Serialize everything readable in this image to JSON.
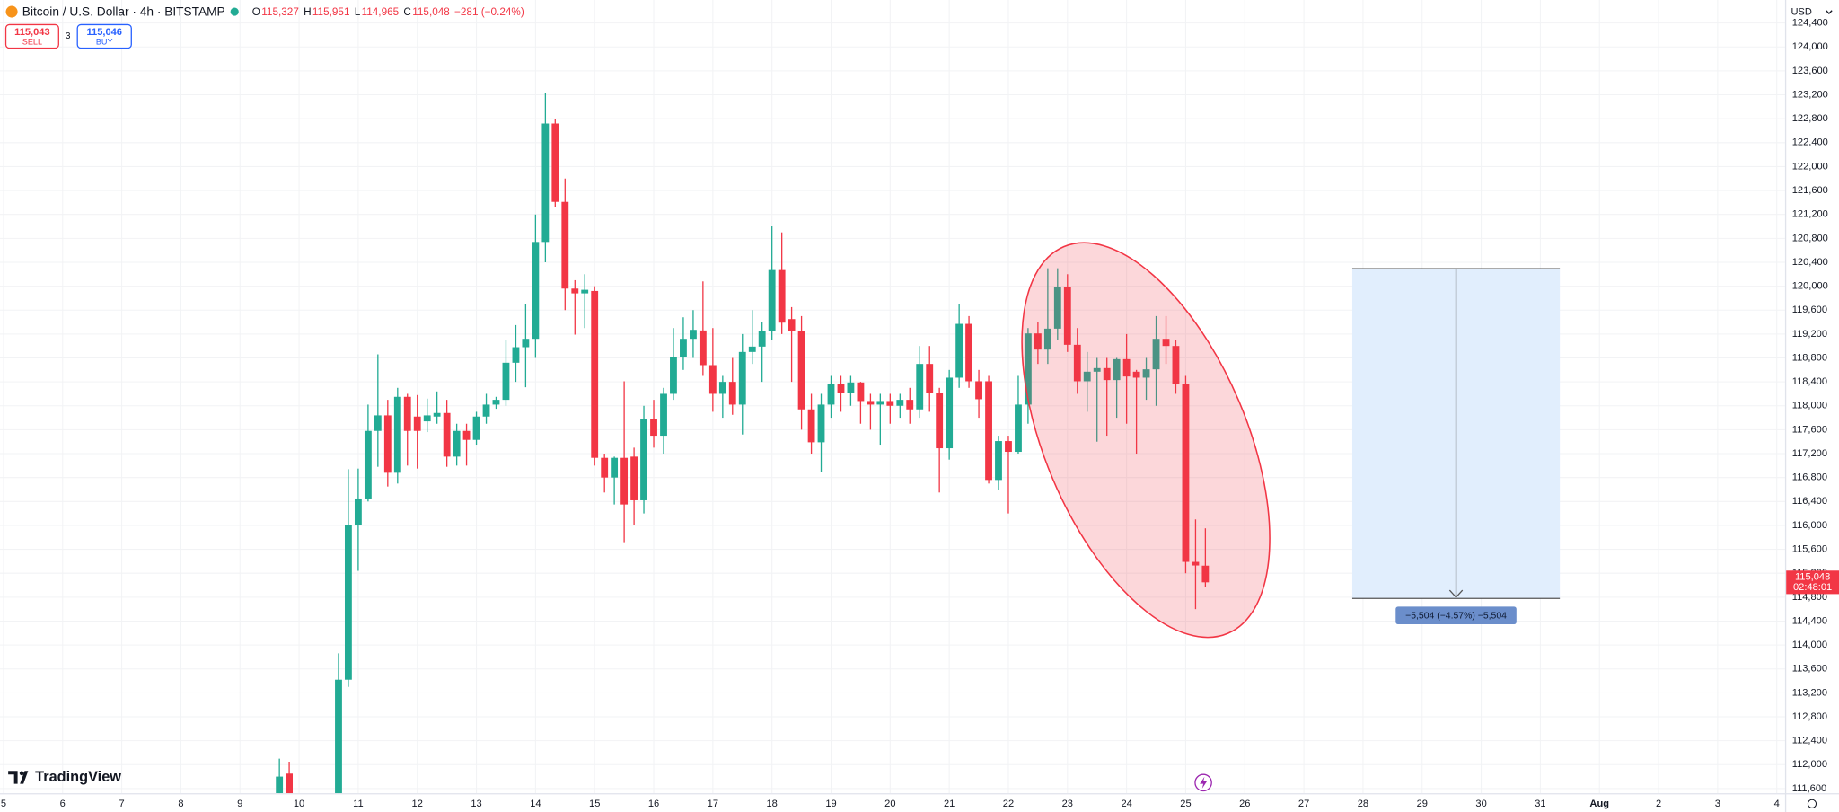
{
  "header": {
    "symbol": "Bitcoin / U.S. Dollar · 4h · BITSTAMP",
    "ohlc": [
      {
        "key": "O",
        "value": "115,327"
      },
      {
        "key": "H",
        "value": "115,951"
      },
      {
        "key": "L",
        "value": "114,965"
      },
      {
        "key": "C",
        "value": "115,048"
      }
    ],
    "change": "−281 (−0.24%)",
    "sell": {
      "price": "115,043",
      "label": "SELL"
    },
    "spread": "3",
    "buy": {
      "price": "115,046",
      "label": "BUY"
    },
    "currency": "USD",
    "price_tag": {
      "price": "115,048",
      "countdown": "02:48:01"
    },
    "measure_label": "−5,504 (−4.57%) −5,504",
    "logo": "TradingView"
  },
  "chart_data": {
    "type": "candlestick",
    "up_color": "#22ab94",
    "down_color": "#f23645",
    "grid": true,
    "x": [
      9.667,
      9.833,
      10.667,
      10.833,
      11,
      11.167,
      11.333,
      11.5,
      11.667,
      11.833,
      12,
      12.167,
      12.333,
      12.5,
      12.667,
      12.833,
      13,
      13.167,
      13.333,
      13.5,
      13.667,
      13.833,
      14,
      14.167,
      14.333,
      14.5,
      14.667,
      14.833,
      15,
      15.167,
      15.333,
      15.5,
      15.667,
      15.833,
      16,
      16.167,
      16.333,
      16.5,
      16.667,
      16.833,
      17,
      17.167,
      17.333,
      17.5,
      17.667,
      17.833,
      18,
      18.167,
      18.333,
      18.5,
      18.667,
      18.833,
      19,
      19.167,
      19.333,
      19.5,
      19.667,
      19.833,
      20,
      20.167,
      20.333,
      20.5,
      20.667,
      20.833,
      21,
      21.167,
      21.333,
      21.5,
      21.667,
      21.833,
      22,
      22.167,
      22.333,
      22.5,
      22.667,
      22.833,
      23,
      23.167,
      23.333,
      23.5,
      23.667,
      23.833,
      24,
      24.167,
      24.333,
      24.5,
      24.667,
      24.833,
      25,
      25.167,
      25.333
    ],
    "open": [
      111520,
      111850,
      111500,
      113420,
      116010,
      116450,
      117580,
      117840,
      116880,
      118150,
      117820,
      117740,
      117820,
      117880,
      117150,
      117580,
      117430,
      117820,
      118020,
      118100,
      118720,
      118980,
      119120,
      120740,
      122720,
      121410,
      119960,
      119880,
      119920,
      117130,
      116800,
      117130,
      117150,
      116420,
      117780,
      117500,
      118200,
      118820,
      119120,
      119260,
      118680,
      118200,
      118400,
      118020,
      118900,
      118990,
      119250,
      120270,
      119450,
      119250,
      117940,
      117390,
      118020,
      118370,
      118220,
      118390,
      118080,
      118020,
      118080,
      118000,
      118100,
      117940,
      118700,
      118210,
      117290,
      118470,
      119370,
      118410,
      118410,
      116760,
      117410,
      117230,
      118020,
      119210,
      118940,
      119290,
      119990,
      119020,
      118410,
      118570,
      118630,
      118430,
      118780,
      118570,
      118470,
      118610,
      119120,
      119000,
      118370,
      115390,
      115327
    ],
    "high": [
      112100,
      112050,
      113860,
      116940,
      116950,
      118020,
      118860,
      118100,
      118300,
      118200,
      118180,
      118120,
      118240,
      118100,
      117700,
      117700,
      117900,
      118200,
      118150,
      119100,
      119350,
      119700,
      121200,
      123230,
      122800,
      121800,
      120100,
      120200,
      120000,
      117200,
      117150,
      118410,
      117300,
      118000,
      118100,
      118300,
      119300,
      119480,
      119600,
      120080,
      119300,
      118500,
      118800,
      119200,
      119600,
      119400,
      121000,
      120900,
      119650,
      119500,
      118200,
      118200,
      118500,
      118500,
      118500,
      118400,
      118200,
      118200,
      118200,
      118200,
      118300,
      119000,
      119000,
      118300,
      118600,
      119700,
      119500,
      118600,
      118500,
      117500,
      117500,
      118500,
      119300,
      119400,
      120300,
      120300,
      120200,
      119300,
      118900,
      118800,
      118800,
      118800,
      119200,
      118600,
      118800,
      119500,
      119500,
      119100,
      118500,
      116100,
      115951
    ],
    "low": [
      111400,
      111400,
      111400,
      113300,
      115240,
      116400,
      116980,
      116650,
      116700,
      117000,
      116950,
      117560,
      117700,
      116980,
      117000,
      117000,
      117350,
      117700,
      117950,
      118000,
      118400,
      118310,
      118800,
      120400,
      121320,
      119600,
      119190,
      119300,
      117000,
      116550,
      116350,
      115720,
      116000,
      116200,
      117300,
      117200,
      118100,
      118600,
      118800,
      118500,
      117900,
      117800,
      117850,
      117520,
      118700,
      118400,
      119100,
      119200,
      118400,
      117600,
      117200,
      116900,
      117800,
      117900,
      118000,
      117700,
      117600,
      117350,
      117700,
      117800,
      117700,
      117800,
      117900,
      116550,
      117100,
      118300,
      118300,
      117800,
      116700,
      116600,
      116200,
      117200,
      117700,
      118700,
      118700,
      119100,
      118900,
      118200,
      117900,
      117400,
      117500,
      117800,
      117700,
      117200,
      118100,
      118000,
      118700,
      118200,
      115200,
      114600,
      114965
    ],
    "close": [
      111800,
      111500,
      113420,
      116010,
      116450,
      117580,
      117840,
      116880,
      118150,
      117580,
      117580,
      117840,
      117880,
      117150,
      117580,
      117430,
      117820,
      118020,
      118100,
      118720,
      118980,
      119120,
      120740,
      122720,
      121410,
      119960,
      119880,
      119940,
      117130,
      116800,
      117130,
      116350,
      116420,
      117780,
      117500,
      118200,
      118820,
      119120,
      119270,
      118680,
      118200,
      118400,
      118020,
      118900,
      118990,
      119250,
      120270,
      119390,
      119250,
      117940,
      117390,
      118020,
      118370,
      118220,
      118390,
      118080,
      118020,
      118080,
      118000,
      118100,
      117940,
      118700,
      118210,
      117290,
      118470,
      119370,
      118410,
      118110,
      116760,
      117410,
      117230,
      118020,
      119210,
      118940,
      119290,
      119990,
      119020,
      118410,
      118570,
      118630,
      118430,
      118780,
      118490,
      118470,
      118610,
      119120,
      119000,
      118370,
      115390,
      115330,
      115048
    ],
    "xlim": [
      4.94,
      35.14
    ],
    "xticks": [
      5,
      6,
      7,
      8,
      9,
      10,
      11,
      12,
      13,
      14,
      15,
      16,
      17,
      18,
      19,
      20,
      21,
      22,
      23,
      24,
      25,
      26,
      27,
      28,
      29,
      30,
      31,
      {
        "value": 32,
        "label": "Aug"
      },
      {
        "value": 33,
        "label": "2"
      },
      {
        "value": 34,
        "label": "3"
      },
      {
        "value": 35,
        "label": "4"
      }
    ],
    "ylim": [
      111522,
      124785
    ],
    "yticks": [
      {
        "value": 111600,
        "label": "111,600"
      },
      {
        "value": 112000,
        "label": "112,000"
      },
      {
        "value": 112400,
        "label": "112,400"
      },
      {
        "value": 112800,
        "label": "112,800"
      },
      {
        "value": 113200,
        "label": "113,200"
      },
      {
        "value": 113600,
        "label": "113,600"
      },
      {
        "value": 114000,
        "label": "114,000"
      },
      {
        "value": 114400,
        "label": "114,400"
      },
      {
        "value": 114800,
        "label": "114,800"
      },
      {
        "value": 115200,
        "label": "115,200"
      },
      {
        "value": 115600,
        "label": "115,600"
      },
      {
        "value": 116000,
        "label": "116,000"
      },
      {
        "value": 116400,
        "label": "116,400"
      },
      {
        "value": 116800,
        "label": "116,800"
      },
      {
        "value": 117200,
        "label": "117,200"
      },
      {
        "value": 117600,
        "label": "117,600"
      },
      {
        "value": 118000,
        "label": "118,000"
      },
      {
        "value": 118400,
        "label": "118,400"
      },
      {
        "value": 118800,
        "label": "118,800"
      },
      {
        "value": 119200,
        "label": "119,200"
      },
      {
        "value": 119600,
        "label": "119,600"
      },
      {
        "value": 120000,
        "label": "120,000"
      },
      {
        "value": 120400,
        "label": "120,400"
      },
      {
        "value": 120800,
        "label": "120,800"
      },
      {
        "value": 121200,
        "label": "121,200"
      },
      {
        "value": 121600,
        "label": "121,600"
      },
      {
        "value": 122000,
        "label": "122,000"
      },
      {
        "value": 122400,
        "label": "122,400"
      },
      {
        "value": 122800,
        "label": "122,800"
      },
      {
        "value": 123200,
        "label": "123,200"
      },
      {
        "value": 123600,
        "label": "123,600"
      },
      {
        "value": 124000,
        "label": "124,000"
      },
      {
        "value": 124400,
        "label": "124,400"
      }
    ]
  }
}
